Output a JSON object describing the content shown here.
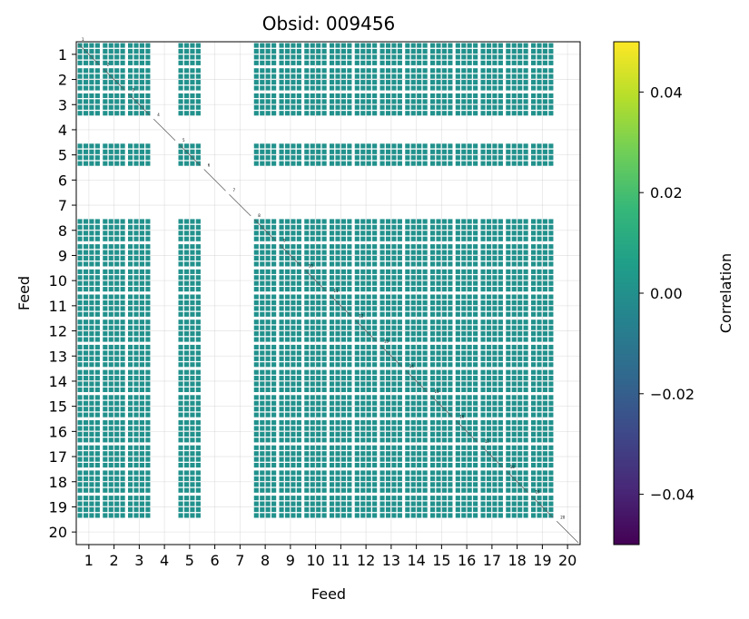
{
  "chart_data": {
    "type": "heatmap",
    "title": "Obsid: 009456",
    "xlabel": "Feed",
    "ylabel": "Feed",
    "x_ticks": [
      "1",
      "2",
      "3",
      "4",
      "5",
      "6",
      "7",
      "8",
      "9",
      "10",
      "11",
      "12",
      "13",
      "14",
      "15",
      "16",
      "17",
      "18",
      "19",
      "20"
    ],
    "y_ticks": [
      "1",
      "2",
      "3",
      "4",
      "5",
      "6",
      "7",
      "8",
      "9",
      "10",
      "11",
      "12",
      "13",
      "14",
      "15",
      "16",
      "17",
      "18",
      "19",
      "20"
    ],
    "xlim": [
      0.5,
      20.5
    ],
    "ylim": [
      0.5,
      20.5
    ],
    "grid": true,
    "active_feeds": [
      1,
      2,
      3,
      5,
      8,
      9,
      10,
      11,
      12,
      13,
      14,
      15,
      16,
      17,
      18,
      19
    ],
    "inactive_feeds": [
      4,
      6,
      7,
      20
    ],
    "cell_value": 0.0,
    "cell_color": "#21918c",
    "colorbar": {
      "label": "Correlation",
      "min": -0.05,
      "max": 0.05,
      "ticks": [
        -0.04,
        -0.02,
        0.0,
        0.02,
        0.04
      ],
      "tick_labels": [
        "−0.04",
        "−0.02",
        "0.00",
        "0.02",
        "0.04"
      ],
      "colormap": "viridis",
      "stops": [
        "#440154",
        "#482878",
        "#3e4989",
        "#31688e",
        "#26828e",
        "#1f9e89",
        "#35b779",
        "#6ece58",
        "#b5de2b",
        "#fde725"
      ]
    }
  }
}
